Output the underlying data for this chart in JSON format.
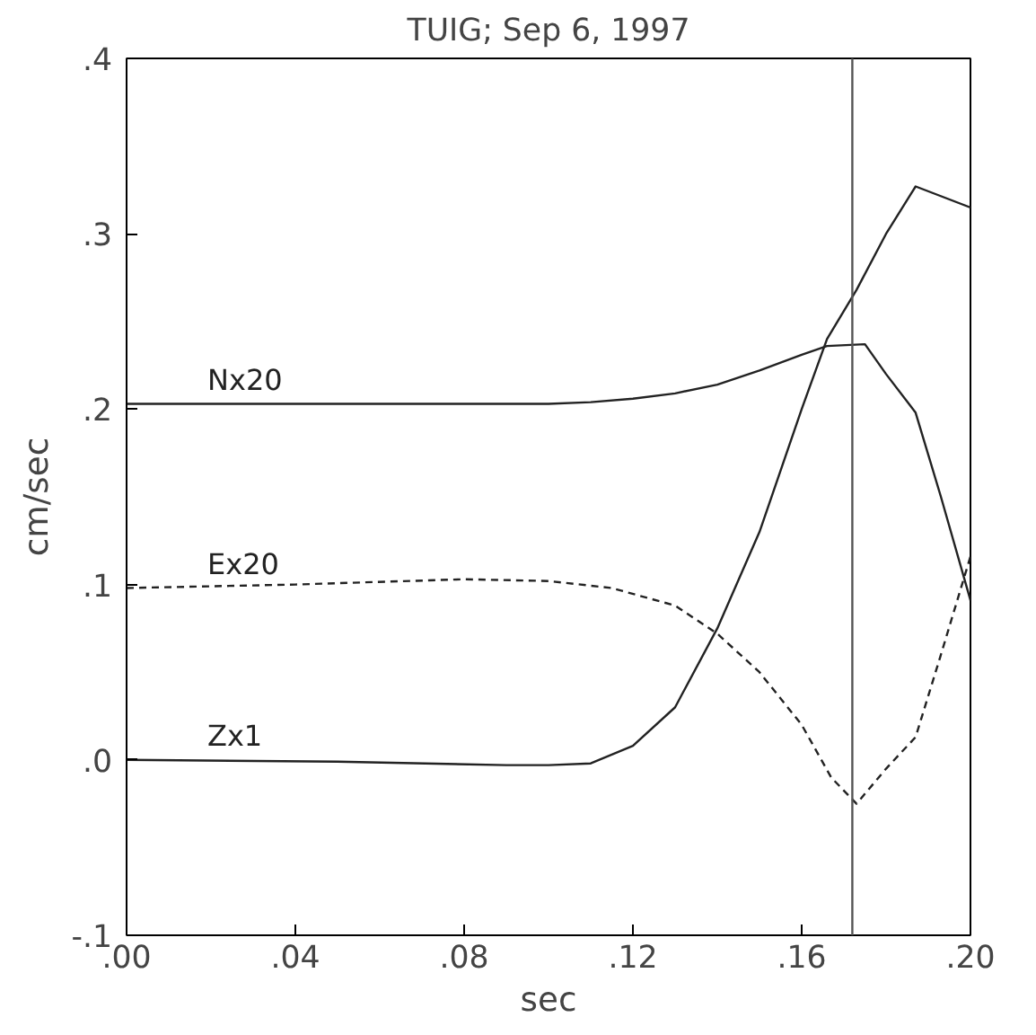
{
  "chart_data": {
    "type": "line",
    "title": "TUIG; Sep 6, 1997",
    "xlabel": "sec",
    "ylabel": "cm/sec",
    "xlim": [
      0,
      0.2
    ],
    "ylim": [
      -0.1,
      0.4
    ],
    "xticks": [
      {
        "value": 0,
        "label": ".00"
      },
      {
        "value": 0.04,
        "label": ".04"
      },
      {
        "value": 0.08,
        "label": ".08"
      },
      {
        "value": 0.12,
        "label": ".12"
      },
      {
        "value": 0.16,
        "label": ".16"
      },
      {
        "value": 0.2,
        "label": ".20"
      }
    ],
    "yticks": [
      {
        "value": -0.1,
        "label": "-.1"
      },
      {
        "value": 0,
        "label": ".0"
      },
      {
        "value": 0.1,
        "label": ".1"
      },
      {
        "value": 0.2,
        "label": ".2"
      },
      {
        "value": 0.3,
        "label": ".3"
      },
      {
        "value": 0.4,
        "label": ".4"
      }
    ],
    "grid": false,
    "series": [
      {
        "name": "Nx20",
        "color": "#222222",
        "line_style": "solid",
        "x": [
          0,
          0.05,
          0.1,
          0.11,
          0.12,
          0.13,
          0.14,
          0.15,
          0.16,
          0.166,
          0.175,
          0.18,
          0.187,
          0.193,
          0.2
        ],
        "values": [
          0.203,
          0.203,
          0.203,
          0.204,
          0.206,
          0.209,
          0.214,
          0.222,
          0.231,
          0.236,
          0.237,
          0.22,
          0.198,
          0.15,
          0.091
        ]
      },
      {
        "name": "Ex20",
        "color": "#222222",
        "line_style": "dashed",
        "x": [
          0,
          0.04,
          0.08,
          0.1,
          0.115,
          0.13,
          0.14,
          0.15,
          0.16,
          0.167,
          0.173,
          0.18,
          0.187,
          0.193,
          0.2
        ],
        "values": [
          0.098,
          0.1,
          0.103,
          0.102,
          0.098,
          0.088,
          0.072,
          0.05,
          0.02,
          -0.01,
          -0.025,
          -0.005,
          0.013,
          0.06,
          0.116
        ]
      },
      {
        "name": "Zx1",
        "color": "#222222",
        "line_style": "solid",
        "x": [
          0,
          0.05,
          0.09,
          0.1,
          0.11,
          0.12,
          0.13,
          0.14,
          0.15,
          0.16,
          0.166,
          0.173,
          0.18,
          0.187,
          0.2
        ],
        "values": [
          0,
          -0.001,
          -0.003,
          -0.003,
          -0.002,
          0.008,
          0.03,
          0.075,
          0.13,
          0.2,
          0.24,
          0.268,
          0.3,
          0.327,
          0.315
        ]
      }
    ],
    "ref_lines": [
      {
        "axis": "x",
        "value": 0.172,
        "color": "#555555"
      }
    ]
  }
}
